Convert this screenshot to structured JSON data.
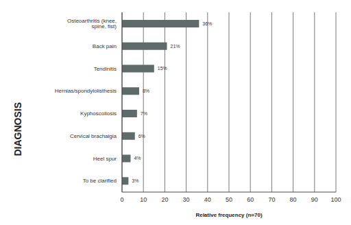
{
  "chart_data": {
    "type": "bar",
    "orientation": "horizontal",
    "x_label": "Relative frequency (n=70)",
    "y_label": "DIAGNOSIS",
    "categories": [
      "Osteoarthritis (knee, spine, fist)",
      "Back pain",
      "Tendinitis",
      "Hernias/spondylolisthesis",
      "Kyphoscoliosis",
      "Cervical brachalgia",
      "Heel spur",
      "To be clarified"
    ],
    "values": [
      36,
      21,
      15,
      8,
      7,
      6,
      4,
      3
    ],
    "value_labels": [
      "36%",
      "21%",
      "15%",
      "8%",
      "7%",
      "6%",
      "4%",
      "3%"
    ],
    "color": "#5f6b68",
    "xlim": [
      0,
      100
    ],
    "xticks": [
      0,
      10,
      20,
      30,
      40,
      50,
      60,
      70,
      80,
      90,
      100
    ],
    "grid": true,
    "data_labels": true
  }
}
